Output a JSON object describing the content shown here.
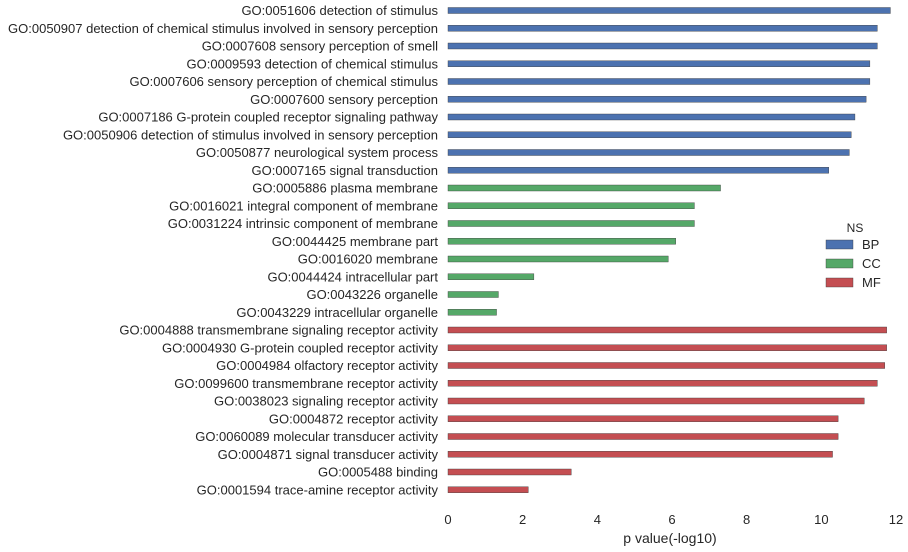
{
  "chart_data": {
    "type": "bar",
    "orientation": "horizontal",
    "xlabel": "p value(-log10)",
    "ylabel": "",
    "xlim": [
      0,
      12
    ],
    "xticks": [
      0,
      2,
      4,
      6,
      8,
      10,
      12
    ],
    "grid": false,
    "legend": {
      "title": "NS",
      "placement": "right"
    },
    "series": [
      {
        "name": "BP",
        "color": "#4c72b0"
      },
      {
        "name": "CC",
        "color": "#55a868"
      },
      {
        "name": "MF",
        "color": "#c44e52"
      }
    ],
    "categories": [
      "GO:0051606 detection of stimulus",
      "GO:0050907 detection of chemical stimulus involved in sensory perception",
      "GO:0007608 sensory perception of smell",
      "GO:0009593 detection of chemical stimulus",
      "GO:0007606 sensory perception of chemical stimulus",
      "GO:0007600 sensory perception",
      "GO:0007186 G-protein coupled receptor signaling pathway",
      "GO:0050906 detection of stimulus involved in sensory perception",
      "GO:0050877 neurological system process",
      "GO:0007165 signal transduction",
      "GO:0005886 plasma membrane",
      "GO:0016021 integral component of membrane",
      "GO:0031224 intrinsic component of membrane",
      "GO:0044425 membrane part",
      "GO:0016020 membrane",
      "GO:0044424 intracellular part",
      "GO:0043226 organelle",
      "GO:0043229 intracellular organelle",
      "GO:0004888 transmembrane signaling receptor activity",
      "GO:0004930 G-protein coupled receptor activity",
      "GO:0004984 olfactory receptor activity",
      "GO:0099600 transmembrane receptor activity",
      "GO:0038023 signaling receptor activity",
      "GO:0004872 receptor activity",
      "GO:0060089 molecular transducer activity",
      "GO:0004871 signal transducer activity",
      "GO:0005488 binding",
      "GO:0001594 trace-amine receptor activity"
    ],
    "values": [
      11.85,
      11.5,
      11.5,
      11.3,
      11.3,
      11.2,
      10.9,
      10.8,
      10.75,
      10.2,
      7.3,
      6.6,
      6.6,
      6.1,
      5.9,
      2.3,
      1.35,
      1.3,
      11.75,
      11.75,
      11.7,
      11.5,
      11.15,
      10.45,
      10.45,
      10.3,
      3.3,
      2.15
    ],
    "groups": [
      "BP",
      "BP",
      "BP",
      "BP",
      "BP",
      "BP",
      "BP",
      "BP",
      "BP",
      "BP",
      "CC",
      "CC",
      "CC",
      "CC",
      "CC",
      "CC",
      "CC",
      "CC",
      "MF",
      "MF",
      "MF",
      "MF",
      "MF",
      "MF",
      "MF",
      "MF",
      "MF",
      "MF"
    ]
  }
}
